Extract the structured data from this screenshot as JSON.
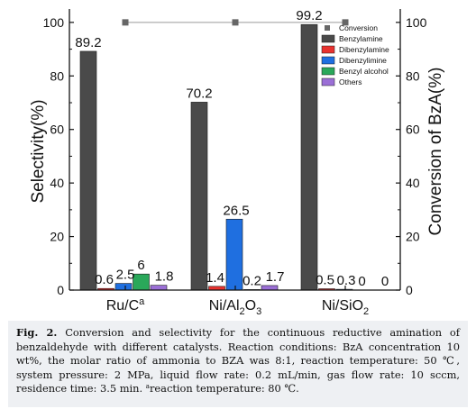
{
  "chart_data": {
    "type": "bar",
    "categories": [
      "Ru/Cª",
      "Ni/Al₂O₃",
      "Ni/SiO₂"
    ],
    "category_labels": [
      {
        "base": "Ru/C",
        "sup": "a",
        "sub": ""
      },
      {
        "base": "Ni/Al",
        "sub": "2",
        "mid": "O",
        "sub2": "3"
      },
      {
        "base": "Ni/SiO",
        "sub": "2"
      }
    ],
    "series": [
      {
        "name": "Benzylamine",
        "color": "#4a4a4a",
        "values": [
          89.2,
          70.2,
          99.2
        ],
        "labels": [
          "89.2",
          "70.2",
          "99.2"
        ]
      },
      {
        "name": "Dibenzylamine",
        "color": "#e8322f",
        "values": [
          0.6,
          1.4,
          0.5
        ],
        "labels": [
          "0.6",
          "1.4",
          "0.5"
        ]
      },
      {
        "name": "Dibenzylimine",
        "color": "#1f6fe0",
        "values": [
          2.5,
          26.5,
          0.3
        ],
        "labels": [
          "2.5",
          "26.5",
          "0.3"
        ]
      },
      {
        "name": "Benzyl alcohol",
        "color": "#2aa85a",
        "values": [
          6,
          0.2,
          0
        ],
        "labels": [
          "6",
          "0.2",
          "0"
        ]
      },
      {
        "name": "Others",
        "color": "#9b6fd6",
        "values": [
          1.8,
          1.7,
          0
        ],
        "labels": [
          "1.8",
          "1.7",
          "0"
        ]
      }
    ],
    "conversion": {
      "name": "Conversion",
      "color": "#666666",
      "values": [
        100,
        100,
        100
      ]
    },
    "ylabel_left": "Selectivity(%)",
    "ylabel_right": "Conversion of BzA(%)",
    "ylim": [
      0,
      105
    ],
    "yticks": [
      0,
      20,
      40,
      60,
      80,
      100
    ],
    "legend_position": "top-right",
    "grid": false
  },
  "caption": {
    "fig_label": "Fig. 2.",
    "text": "Conversion and selectivity for the continuous reductive amination of benzaldehyde with different catalysts. Reaction conditions: BzA concentration 10 wt%, the molar ratio of ammonia to BZA was 8:1, reaction temperature: 50 ℃, system pressure: 2 MPa, liquid flow rate: 0.2 mL/min, gas flow rate: 10 sccm, residence time: 3.5 min.",
    "footnote_mark": "a",
    "footnote_text": "reaction temperature: 80 ℃."
  }
}
